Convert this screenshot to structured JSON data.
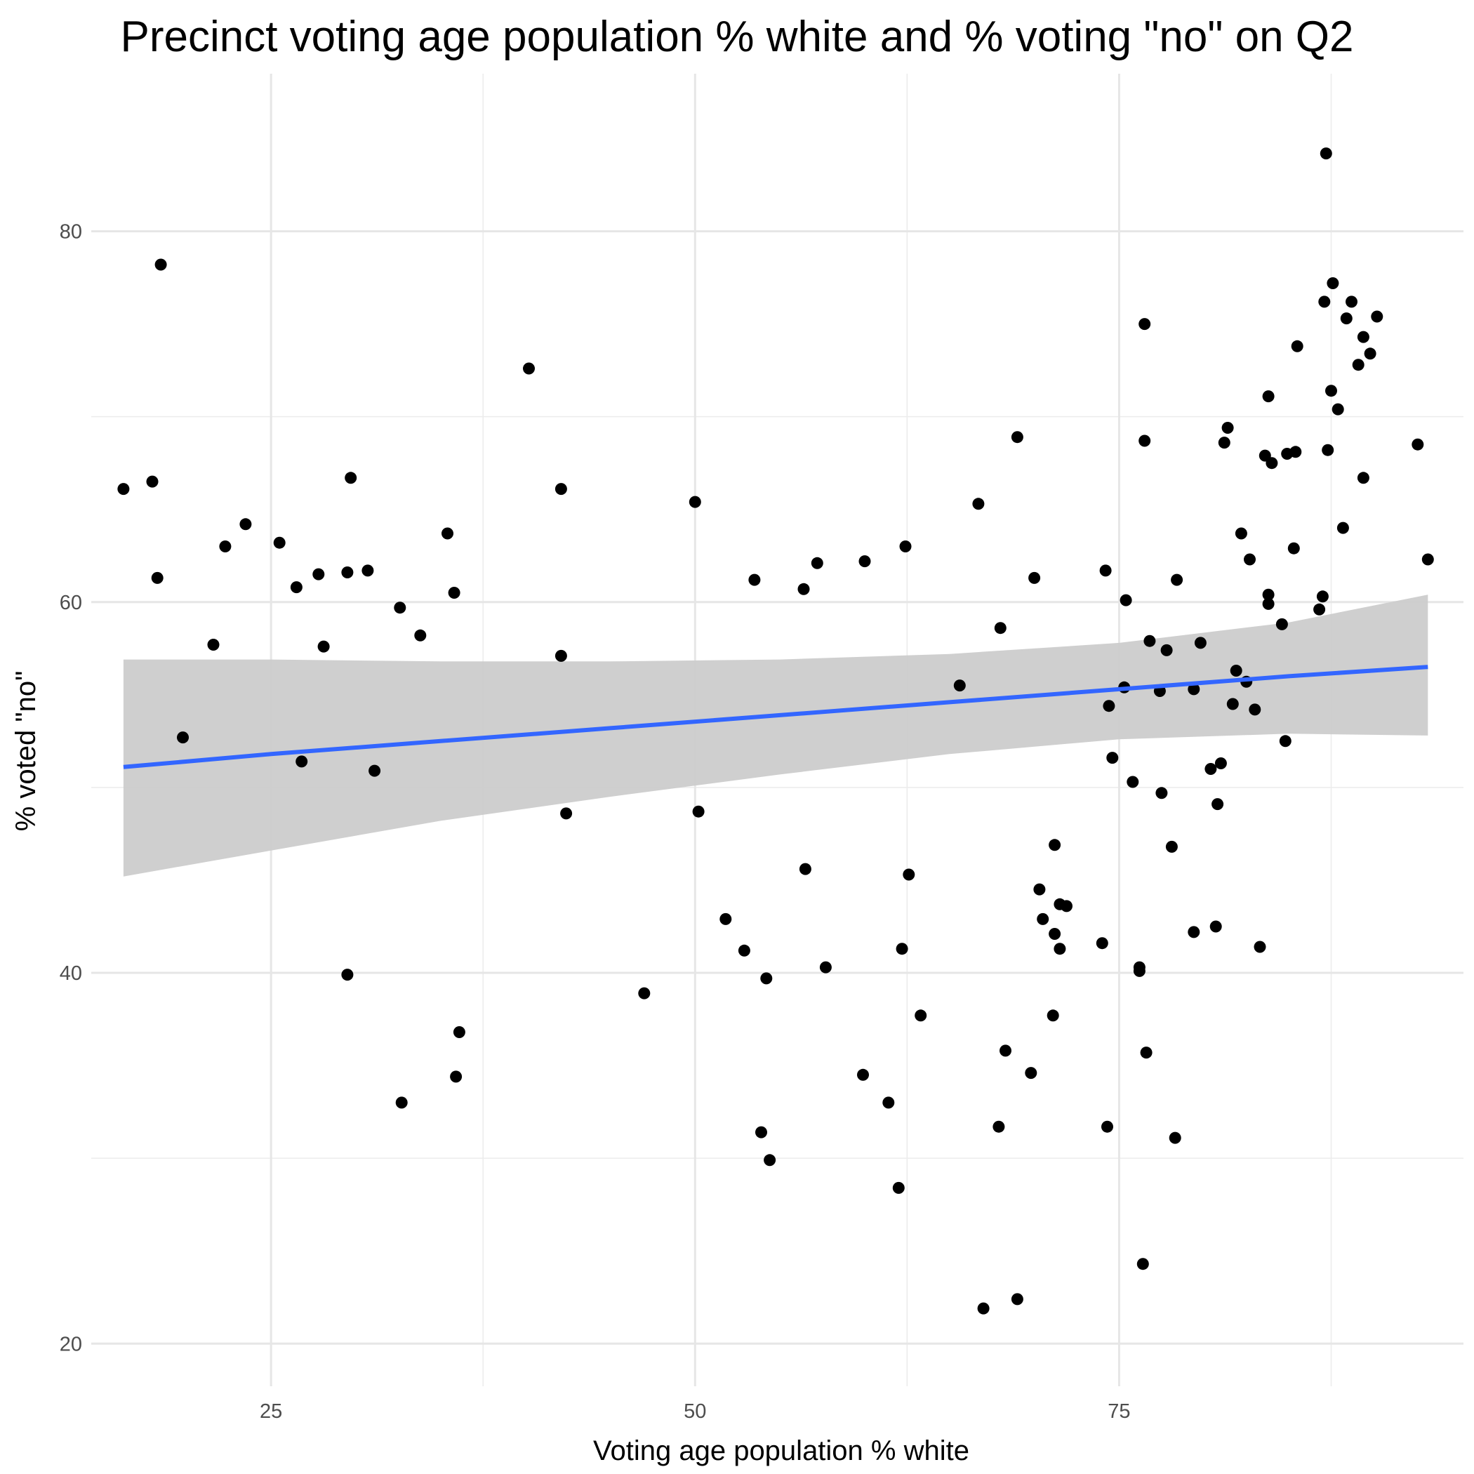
{
  "chart_data": {
    "type": "scatter",
    "title": "Precinct voting age population % white and % voting \"no\" on Q2",
    "xlabel": "Voting age population % white",
    "ylabel": "% voted \"no\"",
    "xlim": [
      14.4,
      95.3
    ],
    "ylim": [
      17.7,
      88.5
    ],
    "x_ticks": [
      25,
      50,
      75
    ],
    "x_tick_labels": [
      "25",
      "50",
      "75"
    ],
    "y_ticks": [
      20,
      40,
      60,
      80
    ],
    "y_tick_labels": [
      "20",
      "40",
      "60",
      "80"
    ],
    "grid": true,
    "legend": "none",
    "point_color": "#000000",
    "points": [
      {
        "x": 16.3,
        "y": 66.1
      },
      {
        "x": 18.0,
        "y": 66.5
      },
      {
        "x": 18.5,
        "y": 78.2
      },
      {
        "x": 18.3,
        "y": 61.3
      },
      {
        "x": 19.8,
        "y": 52.7
      },
      {
        "x": 21.6,
        "y": 57.7
      },
      {
        "x": 22.3,
        "y": 63.0
      },
      {
        "x": 23.5,
        "y": 64.2
      },
      {
        "x": 25.5,
        "y": 63.2
      },
      {
        "x": 26.5,
        "y": 60.8
      },
      {
        "x": 26.8,
        "y": 51.4
      },
      {
        "x": 27.8,
        "y": 61.5
      },
      {
        "x": 28.1,
        "y": 57.6
      },
      {
        "x": 29.5,
        "y": 61.6
      },
      {
        "x": 29.7,
        "y": 66.7
      },
      {
        "x": 30.7,
        "y": 61.7
      },
      {
        "x": 29.5,
        "y": 39.9
      },
      {
        "x": 31.1,
        "y": 50.9
      },
      {
        "x": 32.6,
        "y": 59.7
      },
      {
        "x": 32.7,
        "y": 33.0
      },
      {
        "x": 33.8,
        "y": 58.2
      },
      {
        "x": 35.4,
        "y": 63.7
      },
      {
        "x": 35.8,
        "y": 60.5
      },
      {
        "x": 35.9,
        "y": 34.4
      },
      {
        "x": 36.1,
        "y": 36.8
      },
      {
        "x": 40.2,
        "y": 72.6
      },
      {
        "x": 42.1,
        "y": 66.1
      },
      {
        "x": 42.1,
        "y": 57.1
      },
      {
        "x": 42.4,
        "y": 48.6
      },
      {
        "x": 47.0,
        "y": 38.9
      },
      {
        "x": 50.0,
        "y": 65.4
      },
      {
        "x": 50.2,
        "y": 48.7
      },
      {
        "x": 51.8,
        "y": 42.9
      },
      {
        "x": 52.9,
        "y": 41.2
      },
      {
        "x": 53.5,
        "y": 61.2
      },
      {
        "x": 53.9,
        "y": 31.4
      },
      {
        "x": 54.2,
        "y": 39.7
      },
      {
        "x": 54.4,
        "y": 29.9
      },
      {
        "x": 56.4,
        "y": 60.7
      },
      {
        "x": 56.5,
        "y": 45.6
      },
      {
        "x": 57.2,
        "y": 62.1
      },
      {
        "x": 57.7,
        "y": 40.3
      },
      {
        "x": 60.0,
        "y": 62.2
      },
      {
        "x": 59.9,
        "y": 34.5
      },
      {
        "x": 61.4,
        "y": 33.0
      },
      {
        "x": 62.2,
        "y": 41.3
      },
      {
        "x": 62.4,
        "y": 63.0
      },
      {
        "x": 62.6,
        "y": 45.3
      },
      {
        "x": 62.0,
        "y": 28.4
      },
      {
        "x": 63.3,
        "y": 37.7
      },
      {
        "x": 65.6,
        "y": 55.5
      },
      {
        "x": 66.7,
        "y": 65.3
      },
      {
        "x": 67.0,
        "y": 21.9
      },
      {
        "x": 67.9,
        "y": 31.7
      },
      {
        "x": 68.0,
        "y": 58.6
      },
      {
        "x": 68.3,
        "y": 35.8
      },
      {
        "x": 69.0,
        "y": 68.9
      },
      {
        "x": 69.0,
        "y": 22.4
      },
      {
        "x": 69.8,
        "y": 34.6
      },
      {
        "x": 70.0,
        "y": 61.3
      },
      {
        "x": 70.3,
        "y": 44.5
      },
      {
        "x": 70.5,
        "y": 42.9
      },
      {
        "x": 71.2,
        "y": 42.1
      },
      {
        "x": 71.2,
        "y": 46.9
      },
      {
        "x": 71.1,
        "y": 37.7
      },
      {
        "x": 71.5,
        "y": 43.7
      },
      {
        "x": 71.5,
        "y": 41.3
      },
      {
        "x": 71.9,
        "y": 43.6
      },
      {
        "x": 74.0,
        "y": 41.6
      },
      {
        "x": 74.2,
        "y": 61.7
      },
      {
        "x": 74.4,
        "y": 54.4
      },
      {
        "x": 74.3,
        "y": 31.7
      },
      {
        "x": 74.6,
        "y": 51.6
      },
      {
        "x": 75.3,
        "y": 55.4
      },
      {
        "x": 75.4,
        "y": 60.1
      },
      {
        "x": 75.8,
        "y": 50.3
      },
      {
        "x": 76.2,
        "y": 40.3
      },
      {
        "x": 76.2,
        "y": 40.1
      },
      {
        "x": 76.5,
        "y": 75.0
      },
      {
        "x": 76.5,
        "y": 68.7
      },
      {
        "x": 76.4,
        "y": 24.3
      },
      {
        "x": 76.6,
        "y": 35.7
      },
      {
        "x": 76.8,
        "y": 57.9
      },
      {
        "x": 77.4,
        "y": 55.2
      },
      {
        "x": 77.5,
        "y": 49.7
      },
      {
        "x": 77.8,
        "y": 57.4
      },
      {
        "x": 78.1,
        "y": 46.8
      },
      {
        "x": 78.4,
        "y": 61.2
      },
      {
        "x": 78.3,
        "y": 31.1
      },
      {
        "x": 79.4,
        "y": 42.2
      },
      {
        "x": 79.8,
        "y": 57.8
      },
      {
        "x": 79.4,
        "y": 55.3
      },
      {
        "x": 80.4,
        "y": 51.0
      },
      {
        "x": 80.7,
        "y": 42.5
      },
      {
        "x": 80.8,
        "y": 49.1
      },
      {
        "x": 81.2,
        "y": 68.6
      },
      {
        "x": 81.4,
        "y": 69.4
      },
      {
        "x": 81.0,
        "y": 51.3
      },
      {
        "x": 81.7,
        "y": 54.5
      },
      {
        "x": 81.9,
        "y": 56.3
      },
      {
        "x": 82.2,
        "y": 63.7
      },
      {
        "x": 82.5,
        "y": 55.7
      },
      {
        "x": 82.7,
        "y": 62.3
      },
      {
        "x": 83.0,
        "y": 54.2
      },
      {
        "x": 83.3,
        "y": 41.4
      },
      {
        "x": 83.8,
        "y": 71.1
      },
      {
        "x": 83.6,
        "y": 67.9
      },
      {
        "x": 84.0,
        "y": 67.5
      },
      {
        "x": 83.8,
        "y": 60.4
      },
      {
        "x": 83.8,
        "y": 59.9
      },
      {
        "x": 84.6,
        "y": 58.8
      },
      {
        "x": 84.9,
        "y": 68.0
      },
      {
        "x": 84.8,
        "y": 52.5
      },
      {
        "x": 85.4,
        "y": 68.1
      },
      {
        "x": 85.5,
        "y": 73.8
      },
      {
        "x": 85.3,
        "y": 62.9
      },
      {
        "x": 86.8,
        "y": 59.6
      },
      {
        "x": 87.2,
        "y": 84.2
      },
      {
        "x": 87.1,
        "y": 76.2
      },
      {
        "x": 87.3,
        "y": 68.2
      },
      {
        "x": 87.6,
        "y": 77.2
      },
      {
        "x": 87.5,
        "y": 71.4
      },
      {
        "x": 87.9,
        "y": 70.4
      },
      {
        "x": 87.0,
        "y": 60.3
      },
      {
        "x": 88.4,
        "y": 75.3
      },
      {
        "x": 88.7,
        "y": 76.2
      },
      {
        "x": 88.2,
        "y": 64.0
      },
      {
        "x": 89.1,
        "y": 72.8
      },
      {
        "x": 89.4,
        "y": 74.3
      },
      {
        "x": 89.4,
        "y": 66.7
      },
      {
        "x": 89.8,
        "y": 73.4
      },
      {
        "x": 90.2,
        "y": 75.4
      },
      {
        "x": 92.6,
        "y": 68.5
      },
      {
        "x": 93.2,
        "y": 62.3
      }
    ],
    "fit": {
      "method": "linear",
      "color": "#3366ff",
      "band_color": "#cccccc",
      "x": [
        16.3,
        25,
        35,
        45,
        55,
        65,
        75,
        85,
        93.2
      ],
      "y": [
        51.1,
        51.8,
        52.5,
        53.2,
        53.9,
        54.6,
        55.3,
        56.0,
        56.5
      ],
      "lower": [
        45.2,
        46.6,
        48.2,
        49.5,
        50.7,
        51.8,
        52.6,
        52.9,
        52.8
      ],
      "upper": [
        56.9,
        56.9,
        56.8,
        56.8,
        56.9,
        57.2,
        57.8,
        58.9,
        60.4
      ]
    }
  }
}
